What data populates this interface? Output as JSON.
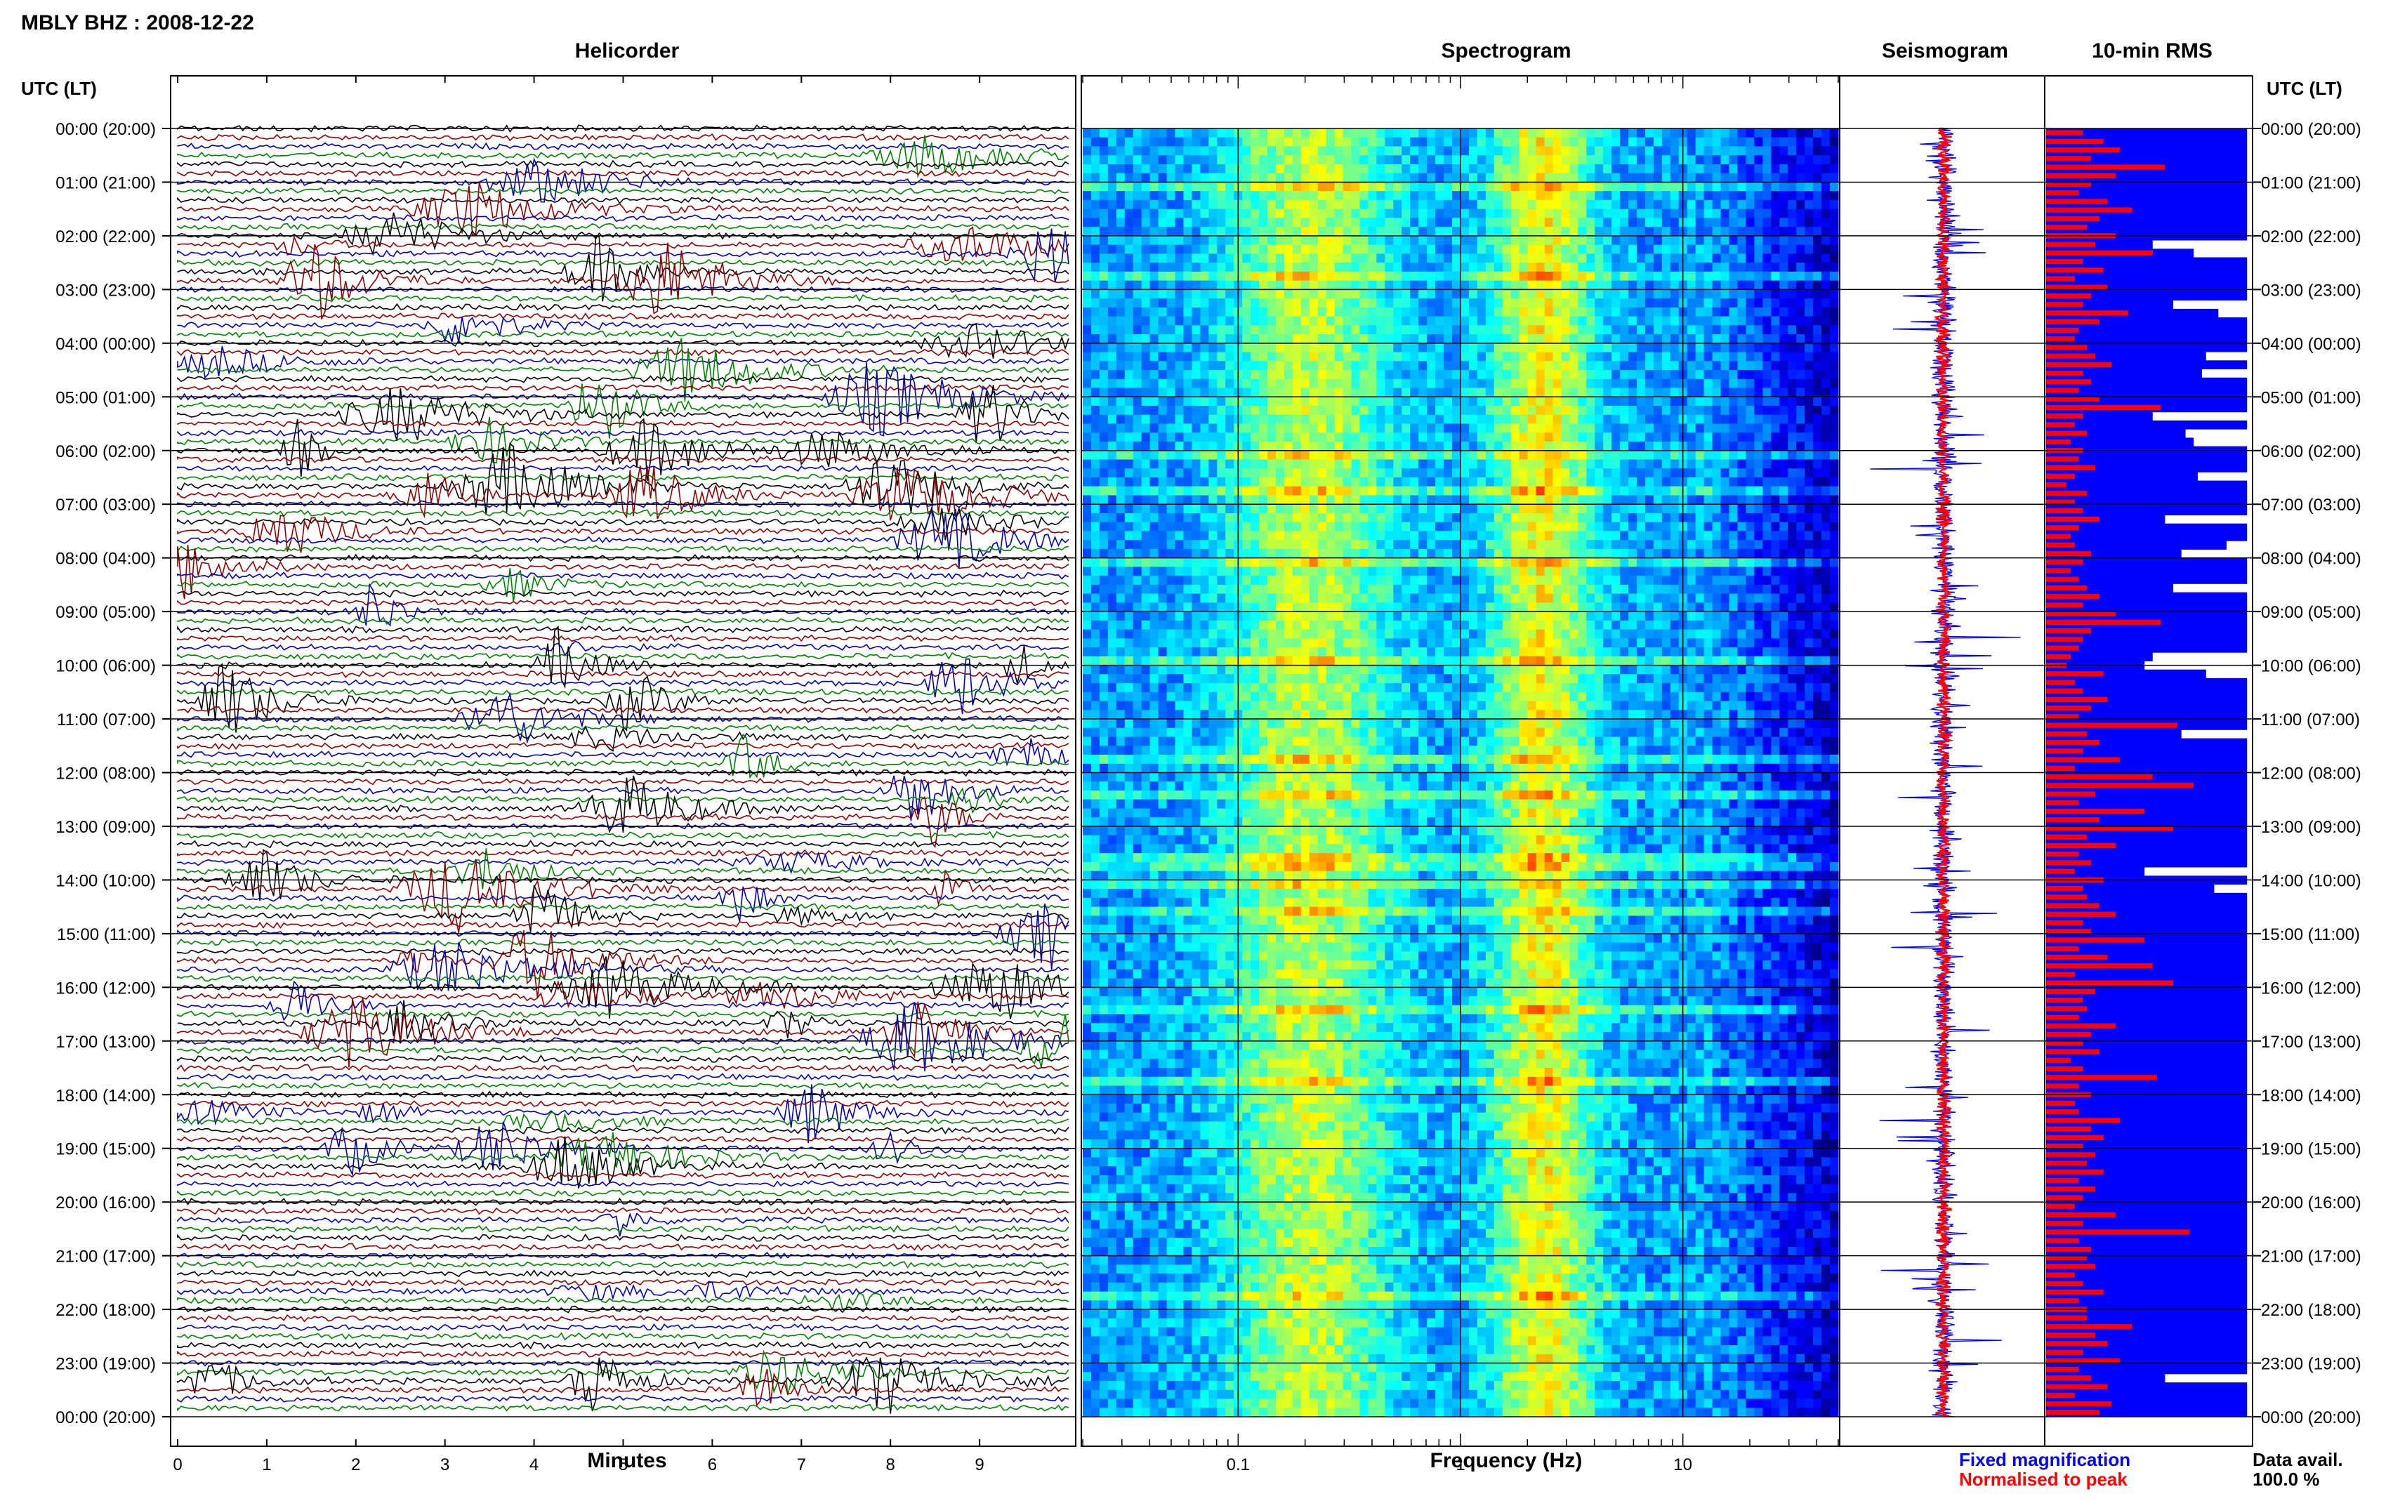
{
  "page_title": "MBLY BHZ : 2008-12-22",
  "time_axis_label": "UTC (LT)",
  "panels": {
    "helicorder": "Helicorder",
    "spectrogram": "Spectrogram",
    "seismogram": "Seismogram",
    "rms": "10-min RMS"
  },
  "legend": {
    "fixed": "Fixed magnification",
    "normalised": "Normalised to peak",
    "fixed_color": "#0000ff",
    "normalised_color": "#ff0000"
  },
  "data_availability": {
    "label": "Data avail.",
    "value": "100.0 %"
  },
  "chart_data": [
    {
      "type": "line",
      "title": "Helicorder",
      "xlabel": "Minutes",
      "x_ticks": [
        "0",
        "1",
        "2",
        "3",
        "4",
        "5",
        "6",
        "7",
        "8",
        "9"
      ],
      "xlim": [
        0,
        10
      ],
      "trace_colors": [
        "#000000",
        "#8b0000",
        "#0000aa",
        "#008000"
      ],
      "row_interval_minutes": 10,
      "y_ticks": [
        "00:00 (20:00)",
        "01:00 (21:00)",
        "02:00 (22:00)",
        "03:00 (23:00)",
        "04:00 (00:00)",
        "05:00 (01:00)",
        "06:00 (02:00)",
        "07:00 (03:00)",
        "08:00 (04:00)",
        "09:00 (05:00)",
        "10:00 (06:00)",
        "11:00 (07:00)",
        "12:00 (08:00)",
        "13:00 (09:00)",
        "14:00 (10:00)",
        "15:00 (11:00)",
        "16:00 (12:00)",
        "17:00 (13:00)",
        "18:00 (14:00)",
        "19:00 (15:00)",
        "20:00 (16:00)",
        "21:00 (17:00)",
        "22:00 (18:00)",
        "23:00 (19:00)",
        "00:00 (20:00)"
      ]
    },
    {
      "type": "heatmap",
      "title": "Spectrogram",
      "xlabel": "Frequency (Hz)",
      "x_scale": "log",
      "xlim": [
        0.02,
        50
      ],
      "x_ticks": [
        "0.1",
        "1",
        "10"
      ],
      "colormap": "jet"
    },
    {
      "type": "line",
      "title": "Seismogram",
      "series": [
        {
          "name": "Fixed magnification",
          "color": "#0000ff"
        },
        {
          "name": "Normalised to peak",
          "color": "#ff0000"
        }
      ]
    },
    {
      "type": "bar",
      "title": "10-min RMS",
      "orientation": "horizontal",
      "bars_per_hour": 6,
      "series": [
        {
          "name": "Fixed magnification",
          "color": "#0000ff",
          "values": [
            0.98,
            0.98,
            0.98,
            0.98,
            0.98,
            0.98,
            0.98,
            0.98,
            0.98,
            0.98,
            0.98,
            0.98,
            0.98,
            0.52,
            0.72,
            0.98,
            0.98,
            0.98,
            0.98,
            0.98,
            0.62,
            0.84,
            0.98,
            0.98,
            0.98,
            0.98,
            0.78,
            0.98,
            0.76,
            0.98,
            0.98,
            0.98,
            0.98,
            0.52,
            0.98,
            0.68,
            0.72,
            0.98,
            0.98,
            0.98,
            0.74,
            0.98,
            0.98,
            0.98,
            0.98,
            0.58,
            0.98,
            0.98,
            0.88,
            0.66,
            0.98,
            0.98,
            0.98,
            0.62,
            0.98,
            0.98,
            0.98,
            0.98,
            0.98,
            0.98,
            0.98,
            0.52,
            0.48,
            0.78,
            0.98,
            0.98,
            0.98,
            0.98,
            0.98,
            0.98,
            0.66,
            0.98,
            0.98,
            0.98,
            0.98,
            0.98,
            0.98,
            0.98,
            0.98,
            0.98,
            0.98,
            0.98,
            0.98,
            0.98,
            0.98,
            0.98,
            0.48,
            0.98,
            0.82,
            0.98,
            0.98,
            0.98,
            0.98,
            0.98,
            0.98,
            0.98,
            0.98,
            0.98,
            0.98,
            0.98,
            0.98,
            0.98,
            0.98,
            0.98,
            0.98,
            0.98,
            0.98,
            0.98,
            0.98,
            0.98,
            0.98,
            0.98,
            0.98,
            0.98,
            0.98,
            0.98,
            0.98,
            0.98,
            0.98,
            0.98,
            0.98,
            0.98,
            0.98,
            0.98,
            0.98,
            0.98,
            0.98,
            0.98,
            0.98,
            0.98,
            0.98,
            0.98,
            0.98,
            0.98,
            0.98,
            0.98,
            0.98,
            0.98,
            0.98,
            0.98,
            0.98,
            0.98,
            0.98,
            0.98,
            0.98,
            0.58,
            0.98,
            0.98,
            0.98,
            0.98
          ]
        },
        {
          "name": "Normalised to peak",
          "color": "#ff0000",
          "values": [
            0.18,
            0.28,
            0.36,
            0.22,
            0.58,
            0.34,
            0.22,
            0.16,
            0.3,
            0.42,
            0.26,
            0.2,
            0.34,
            0.24,
            0.52,
            0.18,
            0.28,
            0.14,
            0.3,
            0.22,
            0.18,
            0.4,
            0.26,
            0.16,
            0.14,
            0.2,
            0.24,
            0.32,
            0.18,
            0.22,
            0.16,
            0.26,
            0.56,
            0.18,
            0.14,
            0.2,
            0.12,
            0.18,
            0.16,
            0.24,
            0.14,
            0.1,
            0.2,
            0.14,
            0.18,
            0.26,
            0.16,
            0.12,
            0.14,
            0.22,
            0.18,
            0.12,
            0.16,
            0.2,
            0.26,
            0.18,
            0.34,
            0.56,
            0.22,
            0.18,
            0.16,
            0.12,
            0.1,
            0.28,
            0.14,
            0.18,
            0.3,
            0.22,
            0.16,
            0.64,
            0.2,
            0.26,
            0.18,
            0.36,
            0.14,
            0.52,
            0.72,
            0.24,
            0.16,
            0.48,
            0.26,
            0.62,
            0.2,
            0.34,
            0.16,
            0.22,
            0.14,
            0.28,
            0.18,
            0.2,
            0.26,
            0.34,
            0.18,
            0.22,
            0.48,
            0.16,
            0.3,
            0.52,
            0.14,
            0.62,
            0.24,
            0.18,
            0.2,
            0.16,
            0.34,
            0.22,
            0.18,
            0.26,
            0.12,
            0.18,
            0.54,
            0.16,
            0.22,
            0.14,
            0.16,
            0.36,
            0.22,
            0.28,
            0.18,
            0.24,
            0.2,
            0.28,
            0.16,
            0.24,
            0.18,
            0.14,
            0.34,
            0.18,
            0.7,
            0.16,
            0.22,
            0.2,
            0.24,
            0.14,
            0.18,
            0.28,
            0.16,
            0.2,
            0.2,
            0.42,
            0.24,
            0.3,
            0.18,
            0.36,
            0.16,
            0.22,
            0.3,
            0.14,
            0.32,
            0.26
          ]
        }
      ]
    }
  ]
}
